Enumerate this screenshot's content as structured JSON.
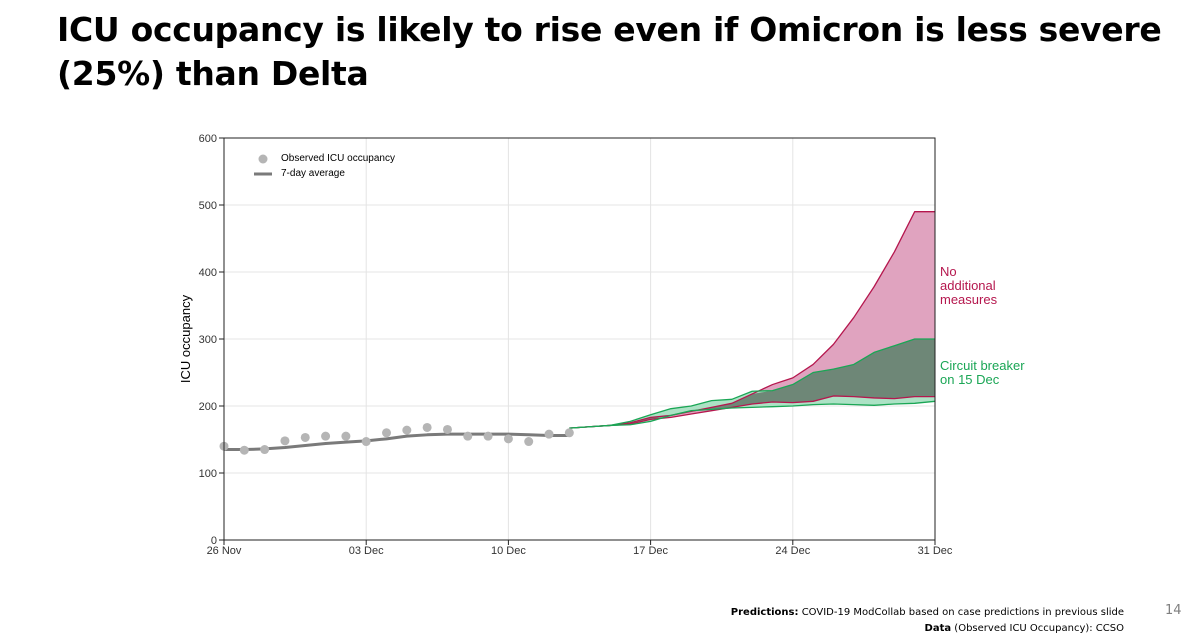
{
  "slide": {
    "title": "ICU occupancy is likely to rise even if Omicron is less severe (25%) than Delta",
    "page_number": "14"
  },
  "footer": {
    "line1_label": "Predictions:",
    "line1_text": " COVID-19 ModCollab based on case predictions in previous slide",
    "line2_label": "Data",
    "line2_text": " (Observed ICU Occupancy): CCSO"
  },
  "colors": {
    "no_measures": "#b5174e",
    "no_measures_fill": "#e0a3bf",
    "circuit_breaker": "#1aa655",
    "circuit_breaker_fill": "#a8e0c2",
    "overlap_fill": "#6e8777",
    "observed_points": "#b5b5b5",
    "average_line": "#7a7a7a",
    "grid": "#e4e4e4"
  },
  "chart_data": {
    "type": "line",
    "ylabel": "ICU occupancy",
    "xlabel": "",
    "ylim": [
      0,
      600
    ],
    "yticks": [
      0,
      100,
      200,
      300,
      400,
      500,
      600
    ],
    "x_range_days": [
      0,
      35
    ],
    "x_ticks": [
      {
        "day": 0,
        "label": "26 Nov"
      },
      {
        "day": 7,
        "label": "03 Dec"
      },
      {
        "day": 14,
        "label": "10 Dec"
      },
      {
        "day": 21,
        "label": "17 Dec"
      },
      {
        "day": 28,
        "label": "24 Dec"
      },
      {
        "day": 35,
        "label": "31 Dec"
      }
    ],
    "grid": true,
    "legend_position": "top-left",
    "legend": {
      "observed": "Observed ICU occupancy",
      "average": "7-day average"
    },
    "observed": {
      "name": "Observed ICU occupancy",
      "days": [
        0,
        1,
        2,
        3,
        4,
        5,
        6,
        7,
        8,
        9,
        10,
        11,
        12,
        13,
        14,
        15,
        16,
        17
      ],
      "values": [
        140,
        134,
        135,
        148,
        153,
        155,
        155,
        147,
        160,
        164,
        168,
        165,
        155,
        155,
        151,
        147,
        158,
        160
      ]
    },
    "seven_day_average": {
      "name": "7-day average",
      "days": [
        0,
        1,
        2,
        3,
        4,
        5,
        6,
        7,
        8,
        9,
        10,
        11,
        12,
        13,
        14,
        15,
        16,
        17
      ],
      "values": [
        135,
        135,
        136,
        138,
        141,
        144,
        146,
        148,
        151,
        155,
        157,
        158,
        158,
        158,
        158,
        157,
        156,
        156
      ]
    },
    "projections": [
      {
        "name": "No additional measures",
        "label_lines": [
          "No",
          "additional",
          "measures"
        ],
        "days": [
          17,
          18,
          19,
          20,
          21,
          22,
          23,
          24,
          25,
          26,
          27,
          28,
          29,
          30,
          31,
          32,
          33,
          34,
          35
        ],
        "upper": [
          167,
          169,
          171,
          175,
          183,
          186,
          192,
          198,
          204,
          218,
          232,
          242,
          262,
          292,
          332,
          378,
          430,
          490,
          490
        ],
        "lower": [
          167,
          169,
          171,
          173,
          180,
          183,
          188,
          193,
          198,
          203,
          206,
          205,
          207,
          215,
          214,
          212,
          211,
          214,
          214
        ]
      },
      {
        "name": "Circuit breaker on 15 Dec",
        "label_lines": [
          "Circuit breaker",
          "on 15 Dec"
        ],
        "days": [
          17,
          18,
          19,
          20,
          21,
          22,
          23,
          24,
          25,
          26,
          27,
          28,
          29,
          30,
          31,
          32,
          33,
          34,
          35
        ],
        "upper": [
          167,
          169,
          171,
          177,
          187,
          196,
          200,
          208,
          210,
          222,
          223,
          232,
          250,
          255,
          262,
          280,
          290,
          300,
          300
        ],
        "lower": [
          167,
          169,
          171,
          172,
          177,
          186,
          193,
          195,
          197,
          198,
          199,
          200,
          202,
          203,
          202,
          201,
          203,
          204,
          207
        ]
      }
    ]
  }
}
